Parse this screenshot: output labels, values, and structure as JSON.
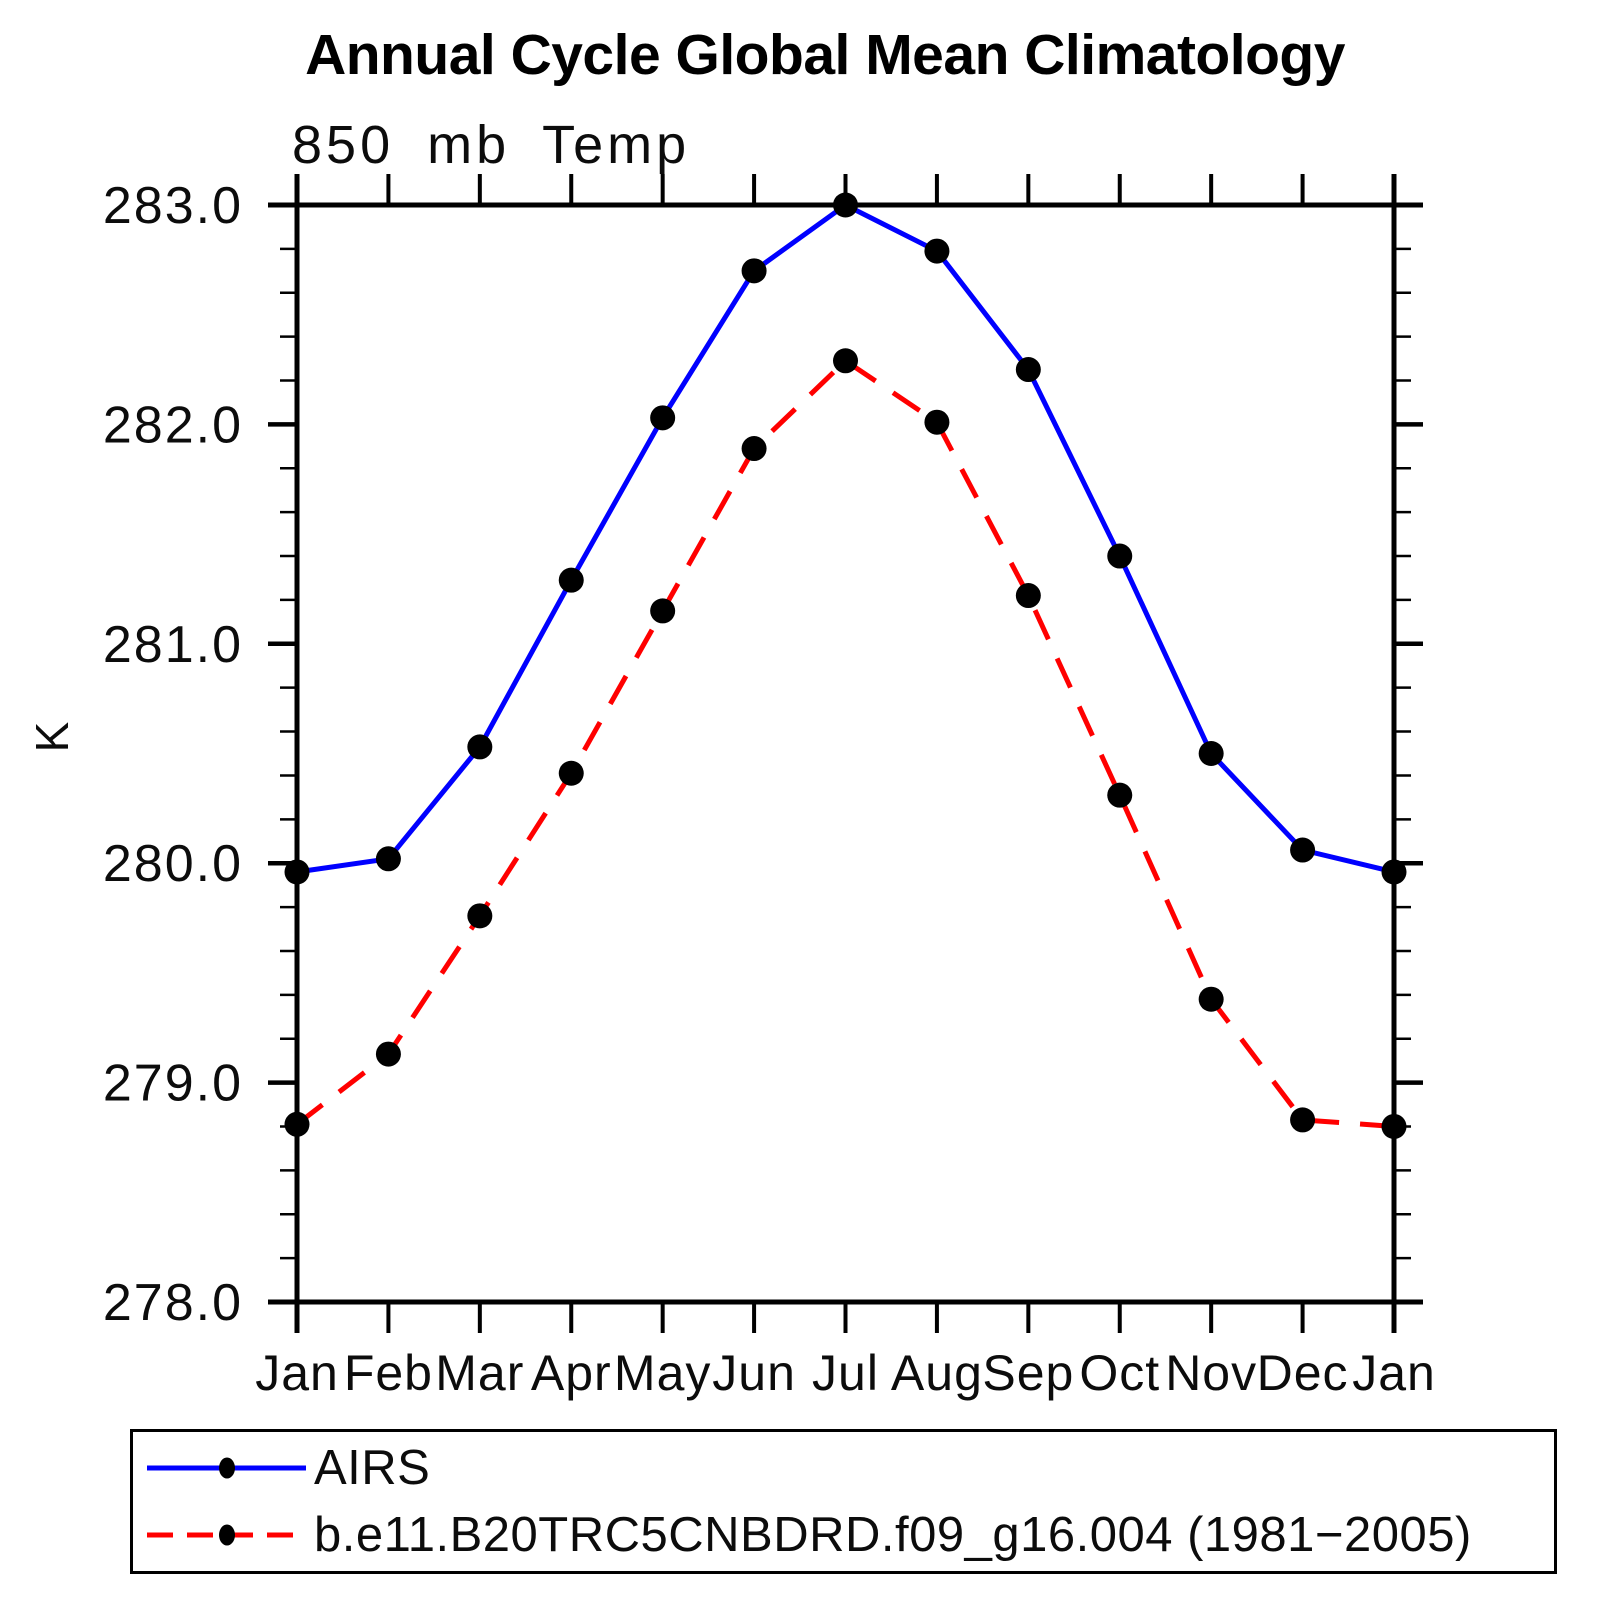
{
  "title": "Annual Cycle Global Mean Climatology",
  "chart_data": {
    "type": "line",
    "title": "Annual Cycle Global Mean Climatology",
    "subtitle": "850 mb Temp",
    "xlabel": "",
    "ylabel": "K",
    "categories": [
      "Jan",
      "Feb",
      "Mar",
      "Apr",
      "May",
      "Jun",
      "Jul",
      "Aug",
      "Sep",
      "Oct",
      "Nov",
      "Dec",
      "Jan"
    ],
    "ylim": [
      278.0,
      283.0
    ],
    "ytick_labels": [
      "278.0",
      "279.0",
      "280.0",
      "281.0",
      "282.0",
      "283.0"
    ],
    "ytick_step_major": 1.0,
    "ytick_step_minor": 0.2,
    "grid": false,
    "legend_position": "bottom-left-box",
    "axis_color": "#000000",
    "marker_color": "#000000",
    "series": [
      {
        "name": "AIRS",
        "color": "#0000ff",
        "style": "solid",
        "marker": "filled-circle",
        "values": [
          279.96,
          280.02,
          280.53,
          281.29,
          282.03,
          282.7,
          283.0,
          282.79,
          282.25,
          281.4,
          280.5,
          280.06,
          279.96
        ]
      },
      {
        "name": "b.e11.B20TRC5CNBDRD.f09_g16.004 (1981−2005)",
        "color": "#ff0000",
        "style": "dashed",
        "marker": "filled-circle",
        "values": [
          278.81,
          279.13,
          279.76,
          280.41,
          281.15,
          281.89,
          282.29,
          282.01,
          281.22,
          280.31,
          279.38,
          278.83,
          278.8
        ]
      }
    ]
  }
}
